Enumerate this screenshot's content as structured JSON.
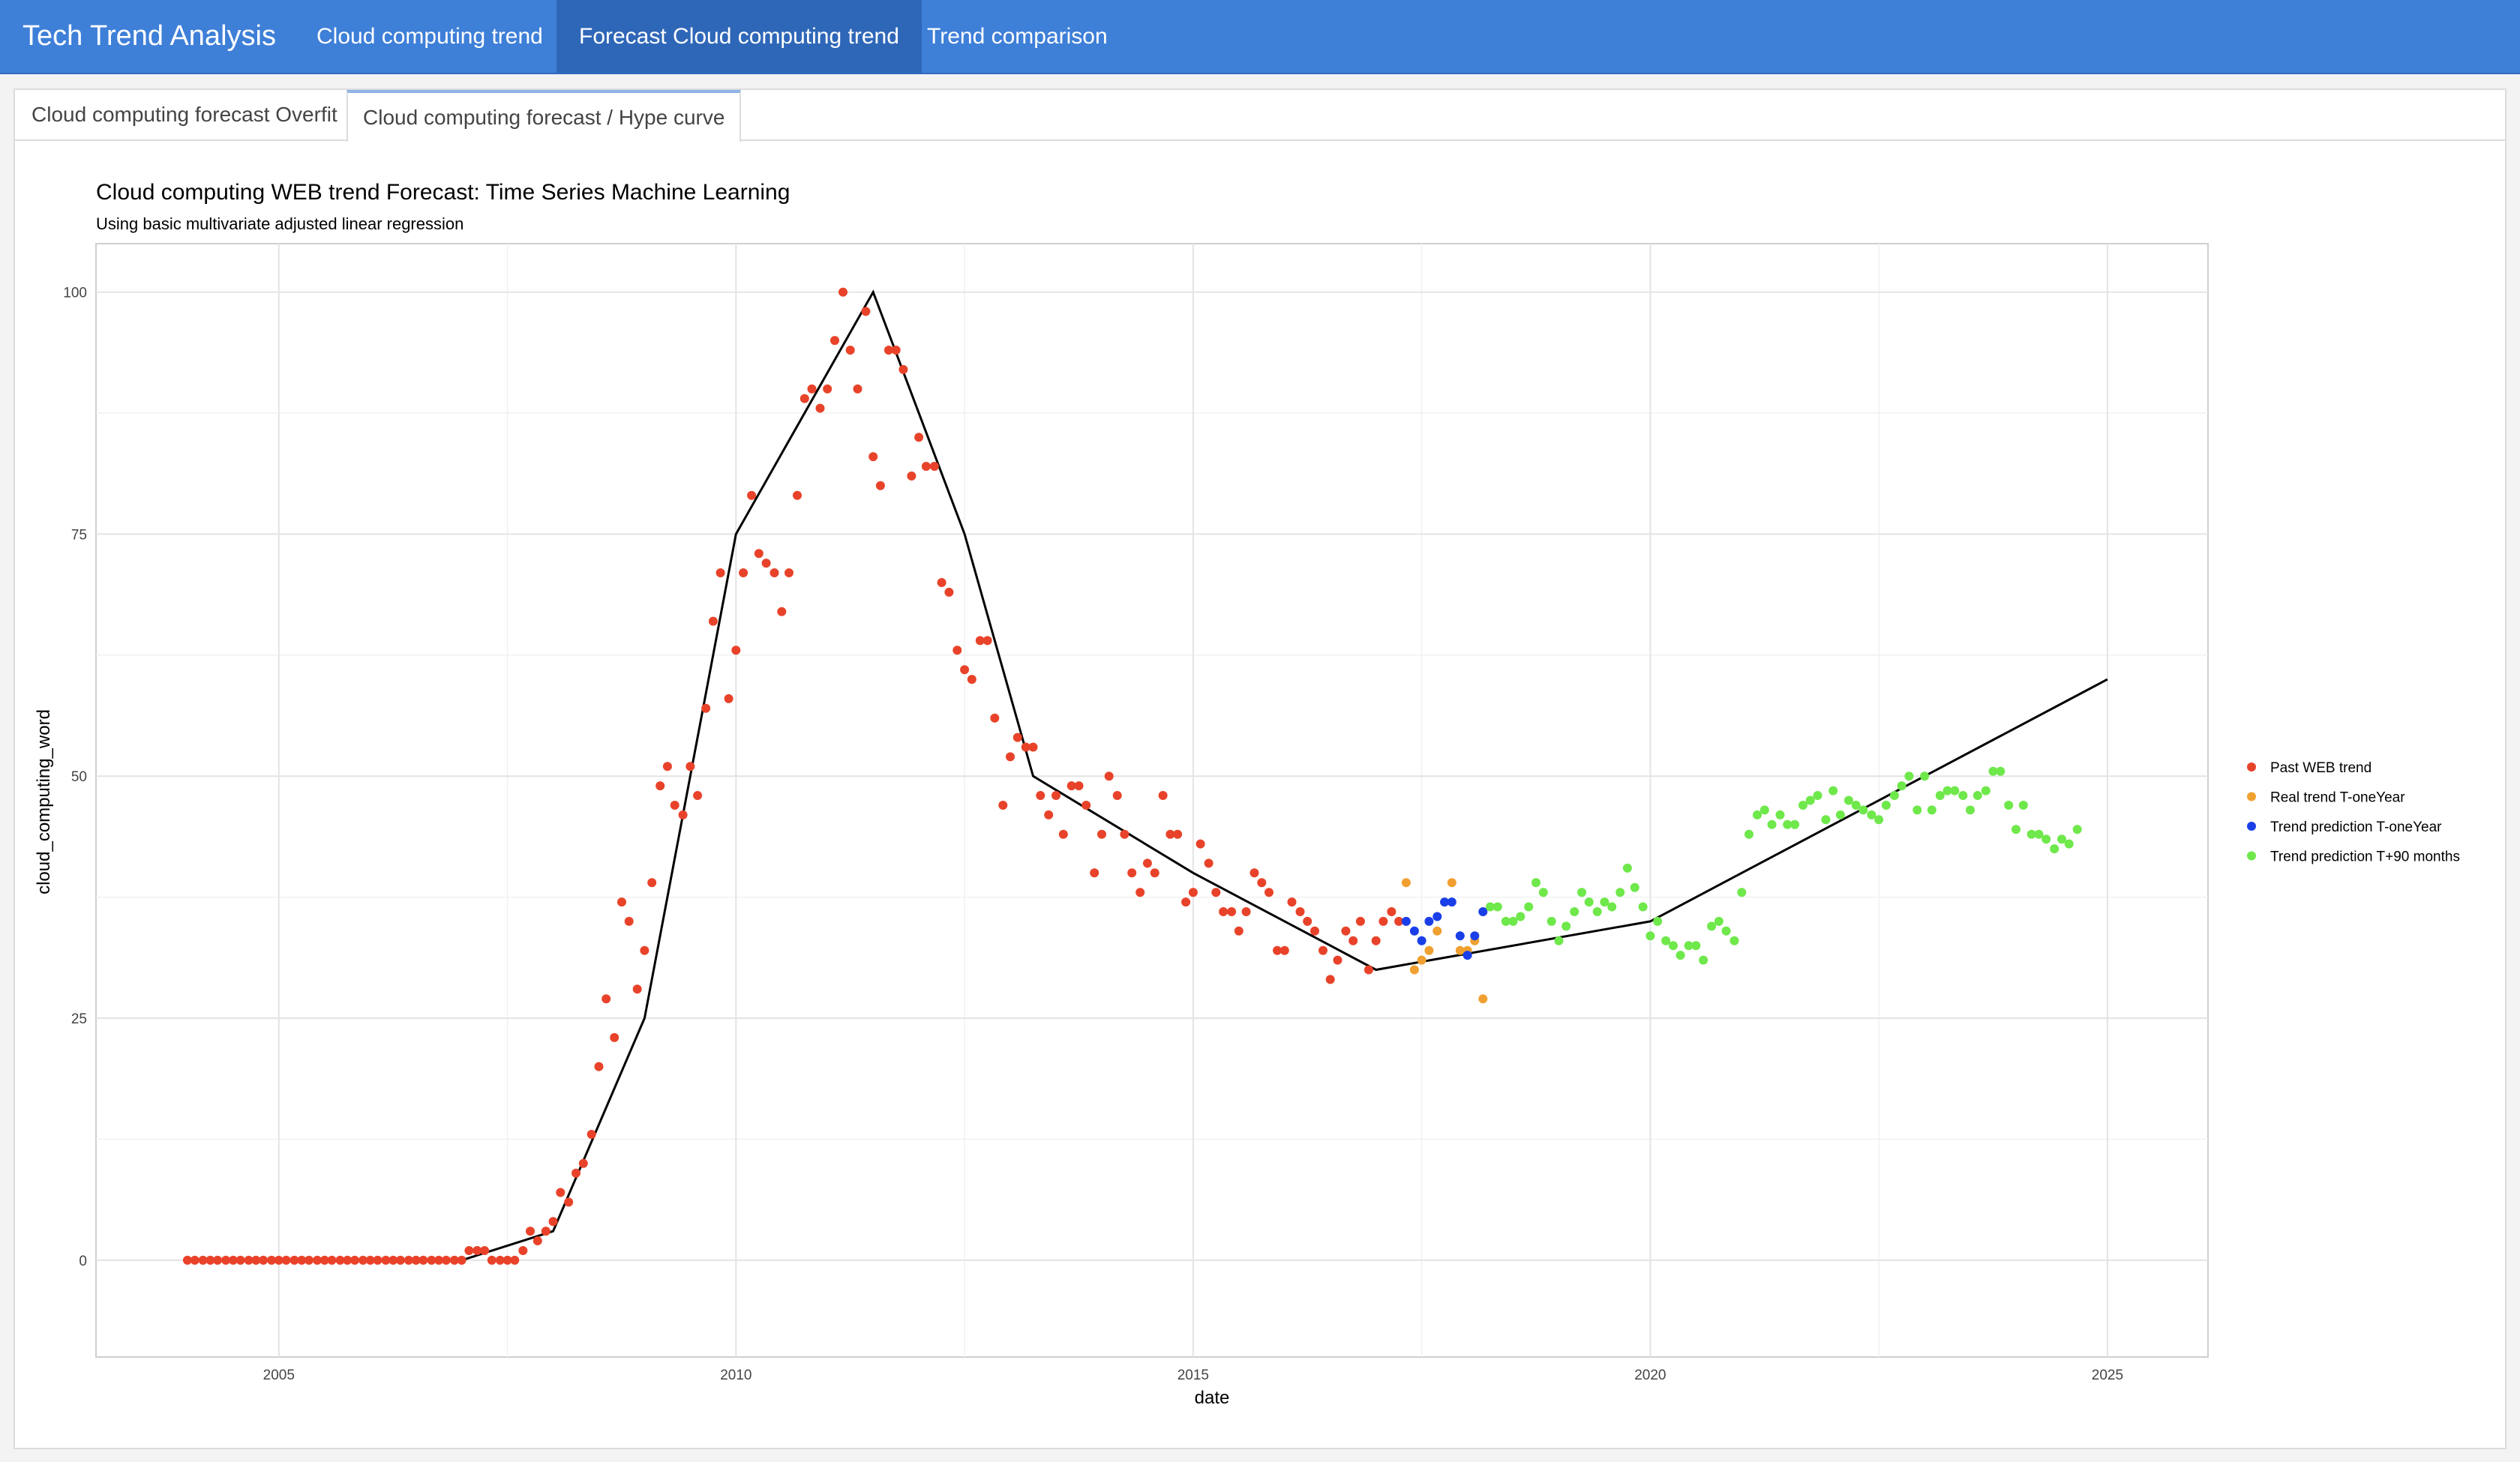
{
  "navbar": {
    "brand": "Tech Trend Analysis",
    "items": [
      {
        "label": "Cloud computing trend",
        "active": false
      },
      {
        "label": "Forecast Cloud computing trend",
        "active": true
      },
      {
        "label": "Trend comparison",
        "active": false
      }
    ]
  },
  "tabs": [
    {
      "label": "Cloud computing forecast Overfit",
      "active": false
    },
    {
      "label": "Cloud computing forecast / Hype curve",
      "active": true
    }
  ],
  "colors": {
    "navbar": "#3e7fd8",
    "past": "#e8432a",
    "real": "#f0a030",
    "pred_one_year": "#1a3fe8",
    "pred_90": "#6ee84a"
  },
  "chart_data": {
    "type": "scatter",
    "title": "Cloud computing WEB trend Forecast: Time Series Machine Learning",
    "subtitle": "Using basic multivariate adjusted linear regression",
    "xlabel": "date",
    "ylabel": "cloud_computing_word",
    "xlim": [
      2003.0,
      2026.1
    ],
    "ylim": [
      -10,
      105
    ],
    "x_ticks": [
      2005,
      2010,
      2015,
      2020,
      2025
    ],
    "y_ticks": [
      0,
      25,
      50,
      75,
      100
    ],
    "grid": true,
    "legend_position": "right",
    "series": [
      {
        "name": "Past WEB trend",
        "color": "#e8432a",
        "points": [
          [
            2004.0,
            0
          ],
          [
            2004.08,
            0
          ],
          [
            2004.17,
            0
          ],
          [
            2004.25,
            0
          ],
          [
            2004.33,
            0
          ],
          [
            2004.42,
            0
          ],
          [
            2004.5,
            0
          ],
          [
            2004.58,
            0
          ],
          [
            2004.67,
            0
          ],
          [
            2004.75,
            0
          ],
          [
            2004.83,
            0
          ],
          [
            2004.92,
            0
          ],
          [
            2005.0,
            0
          ],
          [
            2005.08,
            0
          ],
          [
            2005.17,
            0
          ],
          [
            2005.25,
            0
          ],
          [
            2005.33,
            0
          ],
          [
            2005.42,
            0
          ],
          [
            2005.5,
            0
          ],
          [
            2005.58,
            0
          ],
          [
            2005.67,
            0
          ],
          [
            2005.75,
            0
          ],
          [
            2005.83,
            0
          ],
          [
            2005.92,
            0
          ],
          [
            2006.0,
            0
          ],
          [
            2006.08,
            0
          ],
          [
            2006.17,
            0
          ],
          [
            2006.25,
            0
          ],
          [
            2006.33,
            0
          ],
          [
            2006.42,
            0
          ],
          [
            2006.5,
            0
          ],
          [
            2006.58,
            0
          ],
          [
            2006.67,
            0
          ],
          [
            2006.75,
            0
          ],
          [
            2006.83,
            0
          ],
          [
            2006.92,
            0
          ],
          [
            2007.0,
            0
          ],
          [
            2007.08,
            1
          ],
          [
            2007.17,
            1
          ],
          [
            2007.25,
            1
          ],
          [
            2007.33,
            0
          ],
          [
            2007.42,
            0
          ],
          [
            2007.5,
            0
          ],
          [
            2007.58,
            0
          ],
          [
            2007.67,
            1
          ],
          [
            2007.75,
            3
          ],
          [
            2007.83,
            2
          ],
          [
            2007.92,
            3
          ],
          [
            2008.0,
            4
          ],
          [
            2008.08,
            7
          ],
          [
            2008.17,
            6
          ],
          [
            2008.25,
            9
          ],
          [
            2008.33,
            10
          ],
          [
            2008.42,
            13
          ],
          [
            2008.5,
            20
          ],
          [
            2008.58,
            27
          ],
          [
            2008.67,
            23
          ],
          [
            2008.75,
            37
          ],
          [
            2008.83,
            35
          ],
          [
            2008.92,
            28
          ],
          [
            2009.0,
            32
          ],
          [
            2009.08,
            39
          ],
          [
            2009.17,
            49
          ],
          [
            2009.25,
            51
          ],
          [
            2009.33,
            47
          ],
          [
            2009.42,
            46
          ],
          [
            2009.5,
            51
          ],
          [
            2009.58,
            48
          ],
          [
            2009.67,
            57
          ],
          [
            2009.75,
            66
          ],
          [
            2009.83,
            71
          ],
          [
            2009.92,
            58
          ],
          [
            2010.0,
            63
          ],
          [
            2010.08,
            71
          ],
          [
            2010.17,
            79
          ],
          [
            2010.25,
            73
          ],
          [
            2010.33,
            72
          ],
          [
            2010.42,
            71
          ],
          [
            2010.5,
            67
          ],
          [
            2010.58,
            71
          ],
          [
            2010.67,
            79
          ],
          [
            2010.75,
            89
          ],
          [
            2010.83,
            90
          ],
          [
            2010.92,
            88
          ],
          [
            2011.0,
            90
          ],
          [
            2011.08,
            95
          ],
          [
            2011.17,
            100
          ],
          [
            2011.25,
            94
          ],
          [
            2011.33,
            90
          ],
          [
            2011.42,
            98
          ],
          [
            2011.5,
            83
          ],
          [
            2011.58,
            80
          ],
          [
            2011.67,
            94
          ],
          [
            2011.75,
            94
          ],
          [
            2011.83,
            92
          ],
          [
            2011.92,
            81
          ],
          [
            2012.0,
            85
          ],
          [
            2012.08,
            82
          ],
          [
            2012.17,
            82
          ],
          [
            2012.25,
            70
          ],
          [
            2012.33,
            69
          ],
          [
            2012.42,
            63
          ],
          [
            2012.5,
            61
          ],
          [
            2012.58,
            60
          ],
          [
            2012.67,
            64
          ],
          [
            2012.75,
            64
          ],
          [
            2012.83,
            56
          ],
          [
            2012.92,
            47
          ],
          [
            2013.0,
            52
          ],
          [
            2013.08,
            54
          ],
          [
            2013.17,
            53
          ],
          [
            2013.25,
            53
          ],
          [
            2013.33,
            48
          ],
          [
            2013.42,
            46
          ],
          [
            2013.5,
            48
          ],
          [
            2013.58,
            44
          ],
          [
            2013.67,
            49
          ],
          [
            2013.75,
            49
          ],
          [
            2013.83,
            47
          ],
          [
            2013.92,
            40
          ],
          [
            2014.0,
            44
          ],
          [
            2014.08,
            50
          ],
          [
            2014.17,
            48
          ],
          [
            2014.25,
            44
          ],
          [
            2014.33,
            40
          ],
          [
            2014.42,
            38
          ],
          [
            2014.5,
            41
          ],
          [
            2014.58,
            40
          ],
          [
            2014.67,
            48
          ],
          [
            2014.75,
            44
          ],
          [
            2014.83,
            44
          ],
          [
            2014.92,
            37
          ],
          [
            2015.0,
            38
          ],
          [
            2015.08,
            43
          ],
          [
            2015.17,
            41
          ],
          [
            2015.25,
            38
          ],
          [
            2015.33,
            36
          ],
          [
            2015.42,
            36
          ],
          [
            2015.5,
            34
          ],
          [
            2015.58,
            36
          ],
          [
            2015.67,
            40
          ],
          [
            2015.75,
            39
          ],
          [
            2015.83,
            38
          ],
          [
            2015.92,
            32
          ],
          [
            2016.0,
            32
          ],
          [
            2016.08,
            37
          ],
          [
            2016.17,
            36
          ],
          [
            2016.25,
            35
          ],
          [
            2016.33,
            34
          ],
          [
            2016.42,
            32
          ],
          [
            2016.5,
            29
          ],
          [
            2016.58,
            31
          ],
          [
            2016.67,
            34
          ],
          [
            2016.75,
            33
          ],
          [
            2016.83,
            35
          ],
          [
            2016.92,
            30
          ],
          [
            2017.0,
            33
          ],
          [
            2017.08,
            35
          ],
          [
            2017.17,
            36
          ],
          [
            2017.25,
            35
          ]
        ]
      },
      {
        "name": "Real trend T-oneYear",
        "color": "#f0a030",
        "points": [
          [
            2017.33,
            39
          ],
          [
            2017.42,
            30
          ],
          [
            2017.5,
            31
          ],
          [
            2017.58,
            32
          ],
          [
            2017.67,
            34
          ],
          [
            2017.75,
            37
          ],
          [
            2017.83,
            39
          ],
          [
            2017.92,
            32
          ],
          [
            2018.0,
            32
          ],
          [
            2018.08,
            33
          ],
          [
            2018.17,
            27
          ]
        ]
      },
      {
        "name": "Trend prediction T-oneYear",
        "color": "#1a3fe8",
        "points": [
          [
            2017.33,
            35
          ],
          [
            2017.42,
            34
          ],
          [
            2017.5,
            33
          ],
          [
            2017.58,
            35
          ],
          [
            2017.67,
            35.5
          ],
          [
            2017.75,
            37
          ],
          [
            2017.83,
            37
          ],
          [
            2017.92,
            33.5
          ],
          [
            2018.0,
            31.5
          ],
          [
            2018.08,
            33.5
          ],
          [
            2018.17,
            36
          ]
        ]
      },
      {
        "name": "Trend prediction T+90 months",
        "color": "#6ee84a",
        "points": [
          [
            2018.25,
            36.5
          ],
          [
            2018.33,
            36.5
          ],
          [
            2018.42,
            35
          ],
          [
            2018.5,
            35
          ],
          [
            2018.58,
            35.5
          ],
          [
            2018.67,
            36.5
          ],
          [
            2018.75,
            39
          ],
          [
            2018.83,
            38
          ],
          [
            2018.92,
            35
          ],
          [
            2019.0,
            33
          ],
          [
            2019.08,
            34.5
          ],
          [
            2019.17,
            36
          ],
          [
            2019.25,
            38
          ],
          [
            2019.33,
            37
          ],
          [
            2019.42,
            36
          ],
          [
            2019.5,
            37
          ],
          [
            2019.58,
            36.5
          ],
          [
            2019.67,
            38
          ],
          [
            2019.75,
            40.5
          ],
          [
            2019.83,
            38.5
          ],
          [
            2019.92,
            36.5
          ],
          [
            2020.0,
            33.5
          ],
          [
            2020.08,
            35
          ],
          [
            2020.17,
            33
          ],
          [
            2020.25,
            32.5
          ],
          [
            2020.33,
            31.5
          ],
          [
            2020.42,
            32.5
          ],
          [
            2020.5,
            32.5
          ],
          [
            2020.58,
            31
          ],
          [
            2020.67,
            34.5
          ],
          [
            2020.75,
            35
          ],
          [
            2020.83,
            34
          ],
          [
            2020.92,
            33
          ],
          [
            2021.0,
            38
          ],
          [
            2021.08,
            44
          ],
          [
            2021.17,
            46
          ],
          [
            2021.25,
            46.5
          ],
          [
            2021.33,
            45
          ],
          [
            2021.42,
            46
          ],
          [
            2021.5,
            45
          ],
          [
            2021.58,
            45
          ],
          [
            2021.67,
            47
          ],
          [
            2021.75,
            47.5
          ],
          [
            2021.83,
            48
          ],
          [
            2021.92,
            45.5
          ],
          [
            2022.0,
            48.5
          ],
          [
            2022.08,
            46
          ],
          [
            2022.17,
            47.5
          ],
          [
            2022.25,
            47
          ],
          [
            2022.33,
            46.5
          ],
          [
            2022.42,
            46
          ],
          [
            2022.5,
            45.5
          ],
          [
            2022.58,
            47
          ],
          [
            2022.67,
            48
          ],
          [
            2022.75,
            49
          ],
          [
            2022.83,
            50
          ],
          [
            2022.92,
            46.5
          ],
          [
            2023.0,
            50
          ],
          [
            2023.08,
            46.5
          ],
          [
            2023.17,
            48
          ],
          [
            2023.25,
            48.5
          ],
          [
            2023.33,
            48.5
          ],
          [
            2023.42,
            48
          ],
          [
            2023.5,
            46.5
          ],
          [
            2023.58,
            48
          ],
          [
            2023.67,
            48.5
          ],
          [
            2023.75,
            50.5
          ],
          [
            2023.83,
            50.5
          ],
          [
            2023.92,
            47
          ],
          [
            2024.0,
            44.5
          ],
          [
            2024.08,
            47
          ],
          [
            2024.17,
            44
          ],
          [
            2024.25,
            44
          ],
          [
            2024.33,
            43.5
          ],
          [
            2024.42,
            42.5
          ],
          [
            2024.5,
            43.5
          ],
          [
            2024.58,
            43
          ],
          [
            2024.67,
            44.5
          ]
        ]
      }
    ],
    "trend_line": {
      "color": "#000000",
      "points": [
        [
          2007.0,
          0
        ],
        [
          2008.0,
          3
        ],
        [
          2009.0,
          25
        ],
        [
          2010.0,
          75
        ],
        [
          2011.5,
          100
        ],
        [
          2012.5,
          75
        ],
        [
          2013.25,
          50
        ],
        [
          2015.0,
          40
        ],
        [
          2017.0,
          30
        ],
        [
          2020.0,
          35
        ],
        [
          2025.0,
          60
        ]
      ]
    }
  }
}
